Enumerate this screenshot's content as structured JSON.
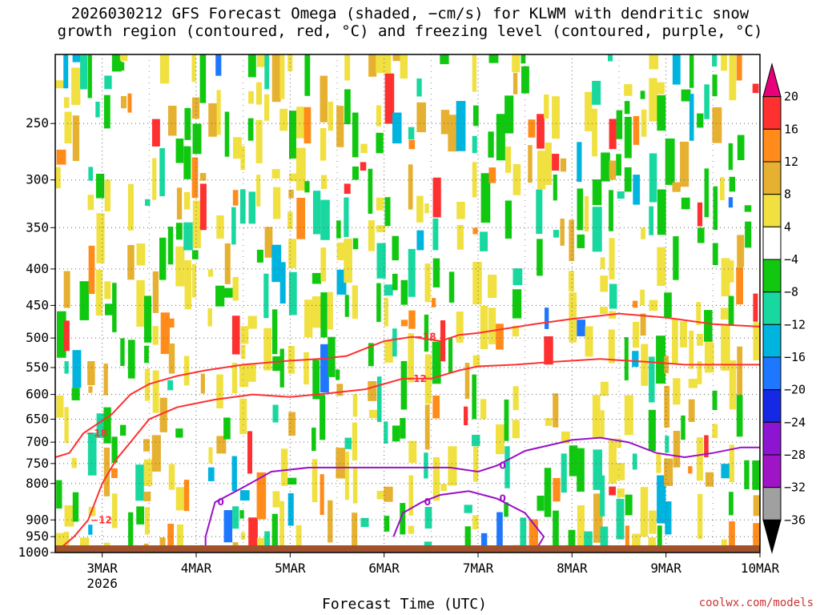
{
  "chart_data": {
    "type": "heatmap",
    "title_lines": [
      "2026030212 GFS Forecast Omega (shaded, −cm/s) for KLWM with dendritic snow",
      "growth region (contoured, red, °C) and freezing level (contoured, purple, °C)"
    ],
    "xlabel": "Forecast Time (UTC)",
    "credit": "coolwx.com/models",
    "x_ticks": [
      "3MAR",
      "4MAR",
      "5MAR",
      "6MAR",
      "7MAR",
      "8MAR",
      "9MAR",
      "10MAR"
    ],
    "x_tick_sub": "2026",
    "x_range_days": [
      2.5,
      10.0
    ],
    "y_ticks": [
      250,
      300,
      350,
      400,
      450,
      500,
      550,
      600,
      650,
      700,
      750,
      800,
      900,
      950,
      1000
    ],
    "y_range_hpa": [
      200,
      1000
    ],
    "grid": true,
    "colorbar": {
      "labels": [
        "20",
        "16",
        "12",
        "8",
        "4",
        "−4",
        "−8",
        "−12",
        "−16",
        "−20",
        "−24",
        "−28",
        "−32",
        "−36"
      ],
      "colors": [
        "#e6007a",
        "#ff3030",
        "#ff8c1a",
        "#e6b030",
        "#f0e040",
        "#ffffff",
        "#10c810",
        "#18d8a0",
        "#00b4e0",
        "#1e78ff",
        "#1428e6",
        "#8c14d2",
        "#a014c8",
        "#a0a0a0",
        "#000000"
      ]
    },
    "contours": [
      {
        "label": "−18",
        "color": "#ff3030",
        "points": [
          [
            2.5,
            735
          ],
          [
            2.65,
            725
          ],
          [
            2.8,
            680
          ],
          [
            3.1,
            640
          ],
          [
            3.3,
            600
          ],
          [
            3.5,
            580
          ],
          [
            3.8,
            565
          ],
          [
            4.1,
            555
          ],
          [
            4.5,
            545
          ],
          [
            5.0,
            538
          ],
          [
            5.3,
            535
          ],
          [
            5.6,
            530
          ],
          [
            6.0,
            505
          ],
          [
            6.3,
            498
          ],
          [
            6.6,
            505
          ],
          [
            6.8,
            495
          ],
          [
            7.0,
            492
          ],
          [
            7.3,
            485
          ],
          [
            7.6,
            478
          ],
          [
            8.0,
            470
          ],
          [
            8.5,
            462
          ],
          [
            9.0,
            468
          ],
          [
            9.5,
            478
          ],
          [
            10.0,
            482
          ]
        ]
      },
      {
        "label": "−12",
        "color": "#ff3030",
        "points": [
          [
            2.5,
            1000
          ],
          [
            2.7,
            950
          ],
          [
            2.85,
            900
          ],
          [
            3.0,
            800
          ],
          [
            3.15,
            740
          ],
          [
            3.3,
            700
          ],
          [
            3.5,
            650
          ],
          [
            3.8,
            625
          ],
          [
            4.2,
            610
          ],
          [
            4.6,
            600
          ],
          [
            5.0,
            605
          ],
          [
            5.4,
            598
          ],
          [
            5.8,
            590
          ],
          [
            6.2,
            570
          ],
          [
            6.5,
            570
          ],
          [
            6.8,
            555
          ],
          [
            7.0,
            548
          ],
          [
            7.4,
            545
          ],
          [
            7.8,
            540
          ],
          [
            8.3,
            535
          ],
          [
            8.8,
            540
          ],
          [
            9.2,
            545
          ],
          [
            9.6,
            545
          ],
          [
            10.0,
            545
          ]
        ]
      },
      {
        "label": "0",
        "color": "#9a10c8",
        "points": [
          [
            4.1,
            1000
          ],
          [
            4.1,
            950
          ],
          [
            4.2,
            850
          ],
          [
            4.5,
            810
          ],
          [
            4.8,
            770
          ],
          [
            5.2,
            760
          ],
          [
            5.6,
            760
          ],
          [
            6.0,
            760
          ],
          [
            6.3,
            760
          ],
          [
            6.5,
            760
          ],
          [
            6.7,
            760
          ],
          [
            7.0,
            770
          ],
          [
            7.2,
            755
          ],
          [
            7.5,
            720
          ],
          [
            7.8,
            705
          ],
          [
            8.0,
            695
          ],
          [
            8.3,
            690
          ],
          [
            8.6,
            700
          ],
          [
            8.9,
            725
          ],
          [
            9.2,
            735
          ],
          [
            9.5,
            725
          ],
          [
            9.8,
            712
          ],
          [
            10.0,
            712
          ]
        ]
      },
      {
        "label": "0",
        "color": "#9a10c8",
        "points": [
          [
            6.1,
            950
          ],
          [
            6.2,
            880
          ],
          [
            6.4,
            850
          ],
          [
            6.6,
            830
          ],
          [
            6.9,
            820
          ],
          [
            7.2,
            840
          ],
          [
            7.5,
            880
          ],
          [
            7.7,
            950
          ],
          [
            7.6,
            1000
          ],
          [
            7.2,
            1000
          ]
        ]
      }
    ]
  }
}
